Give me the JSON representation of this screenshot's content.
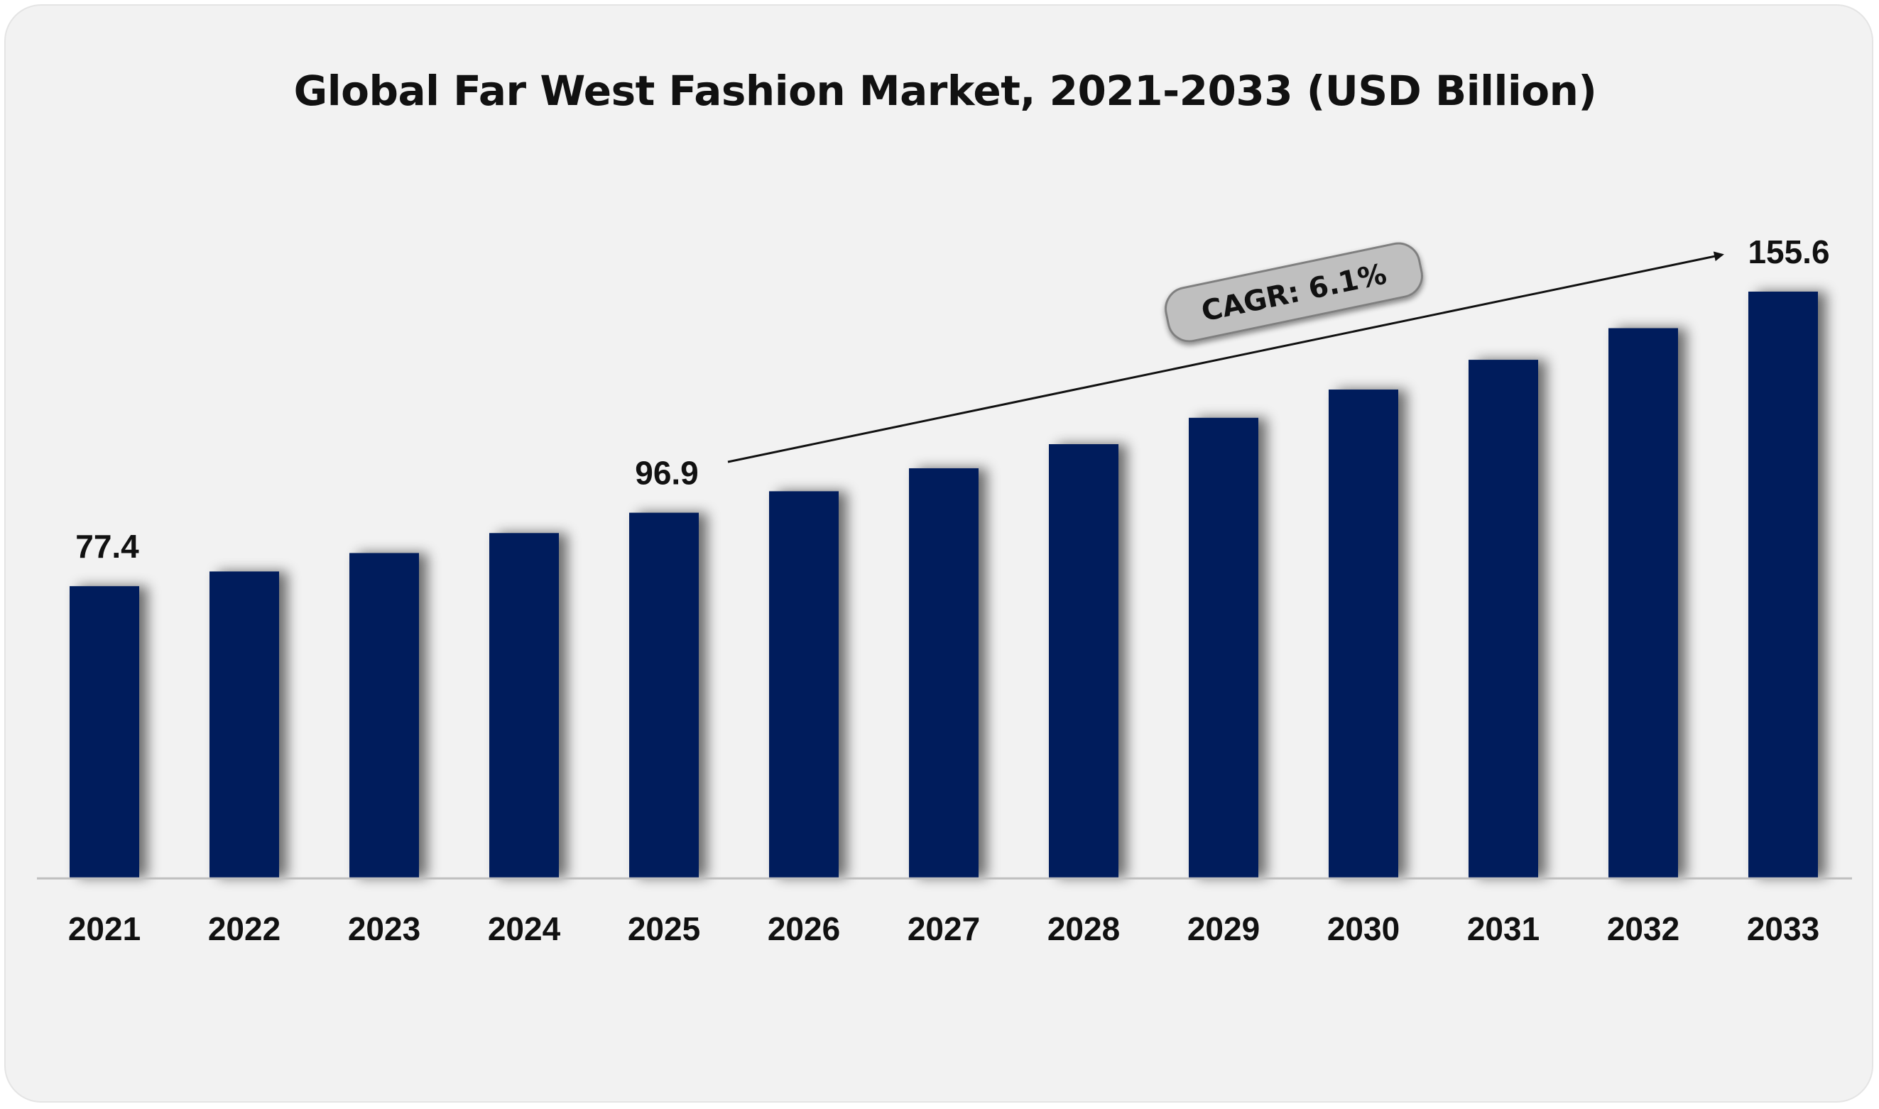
{
  "chart_data": {
    "type": "bar",
    "title": "Global Far West Fashion Market, 2021-2033 (USD Billion)",
    "categories": [
      "2021",
      "2022",
      "2023",
      "2024",
      "2025",
      "2026",
      "2027",
      "2028",
      "2029",
      "2030",
      "2031",
      "2032",
      "2033"
    ],
    "values": [
      77.4,
      81.3,
      86.2,
      91.5,
      96.9,
      102.6,
      108.7,
      115.1,
      122.1,
      129.6,
      137.5,
      145.9,
      155.6
    ],
    "data_labels": [
      {
        "category": "2021",
        "text": "77.4"
      },
      {
        "category": "2025",
        "text": "96.9"
      },
      {
        "category": "2033",
        "text": "155.6"
      }
    ],
    "annotation": "CAGR: 6.1%",
    "xlabel": "",
    "ylabel": "",
    "ylim": [
      0,
      170
    ],
    "grid": false,
    "legend": "none",
    "bar_color": "#001f5c"
  }
}
